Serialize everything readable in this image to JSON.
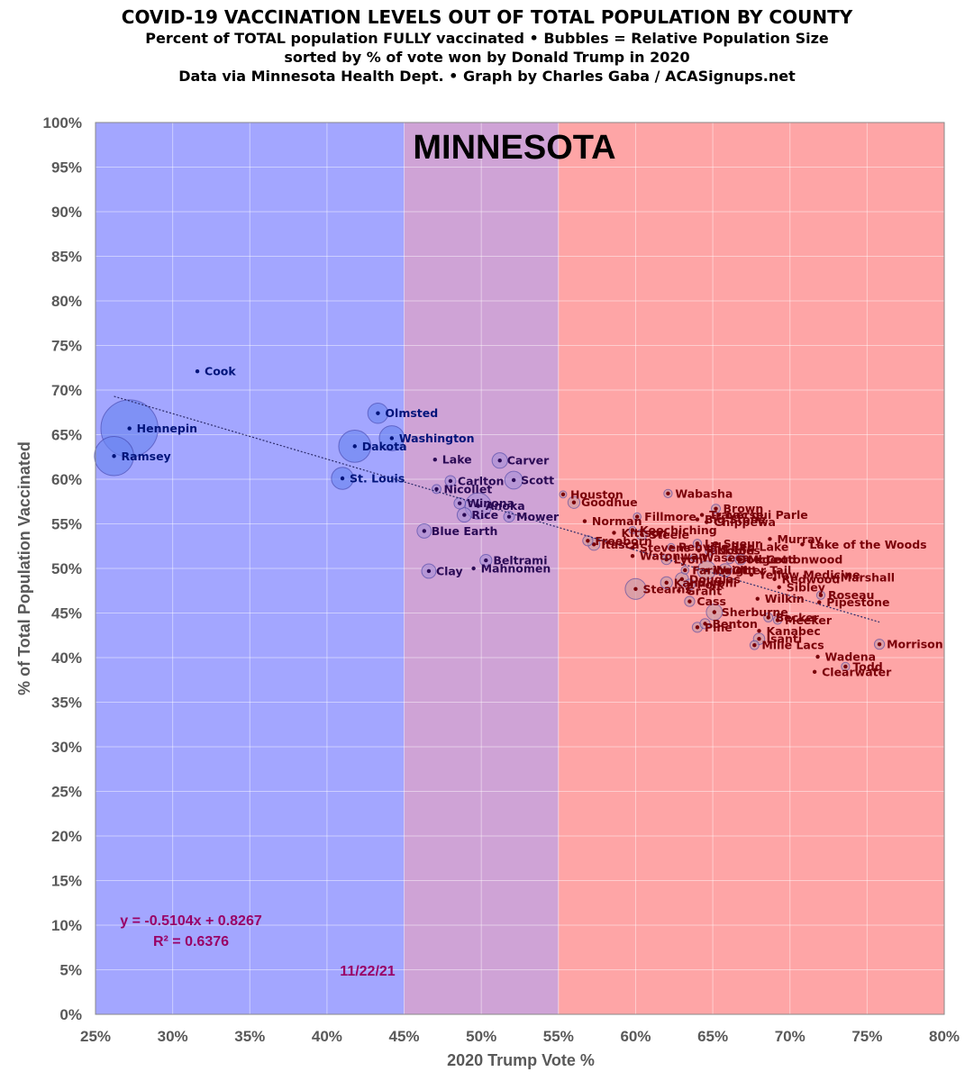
{
  "header": {
    "title": "COVID-19 VACCINATION LEVELS OUT OF TOTAL POPULATION BY COUNTY",
    "subtitle1": "Percent of TOTAL population FULLY vaccinated • Bubbles = Relative Population Size",
    "subtitle2": "sorted by % of vote won by Donald Trump in 2020",
    "subtitle3": "Data via Minnesota Health Dept. • Graph by Charles Gaba / ACASignups.net"
  },
  "chart_data": {
    "type": "scatter",
    "state_label": "MINNESOTA",
    "xlabel": "2020 Trump Vote %",
    "ylabel": "% of Total Population Vaccinated",
    "xlim": [
      25,
      80
    ],
    "ylim": [
      0,
      100
    ],
    "x_ticks": [
      "25%",
      "30%",
      "35%",
      "40%",
      "45%",
      "50%",
      "55%",
      "60%",
      "65%",
      "70%",
      "75%",
      "80%"
    ],
    "y_ticks": [
      "0%",
      "5%",
      "10%",
      "15%",
      "20%",
      "25%",
      "30%",
      "35%",
      "40%",
      "45%",
      "50%",
      "55%",
      "60%",
      "65%",
      "70%",
      "75%",
      "80%",
      "85%",
      "90%",
      "95%",
      "100%"
    ],
    "grid": true,
    "bands": [
      {
        "from": 25,
        "to": 45,
        "color": "#a3a6ff"
      },
      {
        "from": 45,
        "to": 55,
        "color": "#cfa3d6"
      },
      {
        "from": 55,
        "to": 80,
        "color": "#fea5a6"
      }
    ],
    "colors": {
      "blue_text": "#00147a",
      "red_text": "#7a0008",
      "purple_text": "#2a0a55",
      "blue_bubble": "#6b86f0",
      "red_bubble": "#c89aa6",
      "purple_bubble": "#a98fd6"
    },
    "trendline": {
      "equation": "y = -0.5104x + 0.8267",
      "r2": "R² = 0.6376",
      "slope": -0.5104,
      "intercept": 0.8267,
      "x_range": [
        26.2,
        75.8
      ]
    },
    "date": "11/22/21",
    "counties": [
      {
        "name": "Cook",
        "x": 31.6,
        "y": 72.1,
        "size": 0
      },
      {
        "name": "Hennepin",
        "x": 27.2,
        "y": 65.7,
        "size": 9
      },
      {
        "name": "Ramsey",
        "x": 26.2,
        "y": 62.6,
        "size": 6
      },
      {
        "name": "Olmsted",
        "x": 43.3,
        "y": 67.4,
        "size": 2.8
      },
      {
        "name": "Washington",
        "x": 44.2,
        "y": 64.6,
        "size": 3.6
      },
      {
        "name": "Dakota",
        "x": 41.8,
        "y": 63.7,
        "size": 4.8
      },
      {
        "name": "St. Louis",
        "x": 41.0,
        "y": 60.1,
        "size": 3.1
      },
      {
        "name": "Lake",
        "x": 47.0,
        "y": 62.2,
        "size": 0
      },
      {
        "name": "Carver",
        "x": 51.2,
        "y": 62.1,
        "size": 2
      },
      {
        "name": "Scott",
        "x": 52.1,
        "y": 59.9,
        "size": 2.4
      },
      {
        "name": "Carlton",
        "x": 48.0,
        "y": 59.8,
        "size": 1.2
      },
      {
        "name": "Nicollet",
        "x": 47.1,
        "y": 58.9,
        "size": 0.9
      },
      {
        "name": "Winona",
        "x": 48.6,
        "y": 57.3,
        "size": 1.3
      },
      {
        "name": "Anoka",
        "x": 49.8,
        "y": 57.0,
        "size": 3.8
      },
      {
        "name": "Rice",
        "x": 48.9,
        "y": 56.0,
        "size": 1.8
      },
      {
        "name": "Mower",
        "x": 51.8,
        "y": 55.8,
        "size": 1.2
      },
      {
        "name": "Blue Earth",
        "x": 46.3,
        "y": 54.2,
        "size": 1.8
      },
      {
        "name": "Beltrami",
        "x": 50.3,
        "y": 50.9,
        "size": 1.4
      },
      {
        "name": "Clay",
        "x": 46.6,
        "y": 49.7,
        "size": 1.8
      },
      {
        "name": "Mahnomen",
        "x": 49.5,
        "y": 50.0,
        "size": 0
      },
      {
        "name": "Houston",
        "x": 55.3,
        "y": 58.3,
        "size": 0.6
      },
      {
        "name": "Goodhue",
        "x": 56.0,
        "y": 57.4,
        "size": 1.4
      },
      {
        "name": "Wabasha",
        "x": 62.1,
        "y": 58.4,
        "size": 0.8
      },
      {
        "name": "Brown",
        "x": 65.2,
        "y": 56.7,
        "size": 0.9
      },
      {
        "name": "Fillmore",
        "x": 60.1,
        "y": 55.8,
        "size": 0.7
      },
      {
        "name": "Traverse",
        "x": 64.3,
        "y": 56.0,
        "size": 0
      },
      {
        "name": "Lac qui Parle",
        "x": 65.4,
        "y": 56.0,
        "size": 0
      },
      {
        "name": "Big Stone",
        "x": 64.0,
        "y": 55.5,
        "size": 0
      },
      {
        "name": "Chippewa",
        "x": 64.6,
        "y": 55.2,
        "size": 0
      },
      {
        "name": "Norman",
        "x": 56.7,
        "y": 55.3,
        "size": 0
      },
      {
        "name": "Koochiching",
        "x": 59.8,
        "y": 54.3,
        "size": 0.6
      },
      {
        "name": "Kittson",
        "x": 58.6,
        "y": 54.0,
        "size": 0
      },
      {
        "name": "Steele",
        "x": 60.4,
        "y": 53.8,
        "size": 1.2
      },
      {
        "name": "Freeborn",
        "x": 56.9,
        "y": 53.1,
        "size": 1.1
      },
      {
        "name": "Itasca",
        "x": 57.3,
        "y": 52.7,
        "size": 1.4
      },
      {
        "name": "Stevens",
        "x": 59.8,
        "y": 52.3,
        "size": 0
      },
      {
        "name": "Renville",
        "x": 62.3,
        "y": 52.4,
        "size": 0.6
      },
      {
        "name": "Jackson",
        "x": 64.1,
        "y": 52.0,
        "size": 0
      },
      {
        "name": "Nobles",
        "x": 64.8,
        "y": 52.0,
        "size": 0.9
      },
      {
        "name": "Le Sueur",
        "x": 64.0,
        "y": 52.8,
        "size": 0.8
      },
      {
        "name": "Red Lake",
        "x": 65.7,
        "y": 52.4,
        "size": 0
      },
      {
        "name": "Murray",
        "x": 68.7,
        "y": 53.3,
        "size": 0
      },
      {
        "name": "Lake of the Woods",
        "x": 70.8,
        "y": 52.7,
        "size": 0
      },
      {
        "name": "Watonwan",
        "x": 59.8,
        "y": 51.4,
        "size": 0
      },
      {
        "name": "Lyon",
        "x": 62.0,
        "y": 51.0,
        "size": 1.1
      },
      {
        "name": "Waseca",
        "x": 63.8,
        "y": 51.2,
        "size": 0.7
      },
      {
        "name": "Dodge",
        "x": 66.1,
        "y": 51.0,
        "size": 0.8
      },
      {
        "name": "McLeod",
        "x": 66.8,
        "y": 51.0,
        "size": 1.2
      },
      {
        "name": "Cottonwood",
        "x": 68.0,
        "y": 51.0,
        "size": 0
      },
      {
        "name": "Faribault",
        "x": 63.2,
        "y": 49.8,
        "size": 0.7
      },
      {
        "name": "Wright",
        "x": 64.6,
        "y": 49.8,
        "size": 2.5
      },
      {
        "name": "Otter Tail",
        "x": 65.8,
        "y": 49.8,
        "size": 1.6
      },
      {
        "name": "Yellow Medicine",
        "x": 67.5,
        "y": 49.3,
        "size": 0
      },
      {
        "name": "Redwood",
        "x": 69.0,
        "y": 48.8,
        "size": 0
      },
      {
        "name": "Marshall",
        "x": 72.8,
        "y": 49.0,
        "size": 0
      },
      {
        "name": "Douglas",
        "x": 63.0,
        "y": 48.8,
        "size": 1.6
      },
      {
        "name": "Kandiyohi",
        "x": 62.0,
        "y": 48.4,
        "size": 1.4
      },
      {
        "name": "Polk",
        "x": 63.5,
        "y": 48.2,
        "size": 1.2
      },
      {
        "name": "Mille Lacs",
        "x": 67.7,
        "y": 41.4,
        "size": 0.9
      },
      {
        "name": "Stearns",
        "x": 60.0,
        "y": 47.7,
        "size": 2.9
      },
      {
        "name": "Grant",
        "x": 62.8,
        "y": 47.5,
        "size": 0
      },
      {
        "name": "Sibley",
        "x": 69.3,
        "y": 47.9,
        "size": 0
      },
      {
        "name": "Roseau",
        "x": 72.0,
        "y": 47.0,
        "size": 0.8
      },
      {
        "name": "Wilkin",
        "x": 67.9,
        "y": 46.6,
        "size": 0
      },
      {
        "name": "Pipestone",
        "x": 71.9,
        "y": 46.2,
        "size": 0
      },
      {
        "name": "Cass",
        "x": 63.5,
        "y": 46.3,
        "size": 1.1
      },
      {
        "name": "Sherburne",
        "x": 65.1,
        "y": 45.1,
        "size": 2.1
      },
      {
        "name": "Pine",
        "x": 64.0,
        "y": 43.4,
        "size": 1.1
      },
      {
        "name": "Benton",
        "x": 64.5,
        "y": 43.8,
        "size": 1.1
      },
      {
        "name": "Becker",
        "x": 68.6,
        "y": 44.5,
        "size": 0.9
      },
      {
        "name": "Meeker",
        "x": 69.2,
        "y": 44.2,
        "size": 0.8
      },
      {
        "name": "Kanabec",
        "x": 68.0,
        "y": 43.0,
        "size": 0
      },
      {
        "name": "Isanti",
        "x": 68.0,
        "y": 42.1,
        "size": 1.3
      },
      {
        "name": "Morrison",
        "x": 75.8,
        "y": 41.5,
        "size": 1.1
      },
      {
        "name": "Wadena",
        "x": 71.8,
        "y": 40.1,
        "size": 0
      },
      {
        "name": "Todd",
        "x": 73.6,
        "y": 39.0,
        "size": 0.8
      },
      {
        "name": "Clearwater",
        "x": 71.6,
        "y": 38.4,
        "size": 0
      }
    ]
  }
}
